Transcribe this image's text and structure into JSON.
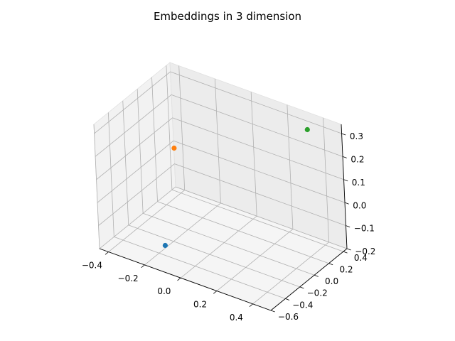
{
  "chart_data": {
    "type": "scatter",
    "projection": "3d",
    "title": "Embeddings in 3 dimension",
    "xlabel": "",
    "ylabel": "",
    "zlabel": "",
    "xlim": [
      -0.45,
      0.5
    ],
    "ylim": [
      -0.6,
      0.45
    ],
    "zlim": [
      -0.2,
      0.34
    ],
    "grid": true,
    "x_ticks": [
      "−0.4",
      "−0.2",
      "0.0",
      "0.2",
      "0.4"
    ],
    "y_ticks": [
      "−0.6",
      "−0.4",
      "−0.2",
      "0.0",
      "0.2",
      "0.4"
    ],
    "z_ticks": [
      "−0.2",
      "−0.1",
      "0.0",
      "0.1",
      "0.2",
      "0.3"
    ],
    "points": [
      {
        "x": -0.1,
        "y": -0.55,
        "z": -0.1,
        "color": "#1f77b4"
      },
      {
        "x": -0.3,
        "y": 0.1,
        "z": 0.1,
        "color": "#ff7f0e"
      },
      {
        "x": 0.35,
        "y": 0.35,
        "z": 0.3,
        "color": "#2ca02c"
      }
    ],
    "pane_colors": {
      "x": "#f2f2f2",
      "y": "#ececec",
      "z": "#f5f5f5"
    },
    "grid_color": "#b0b0b0",
    "axis_color": "#000000"
  }
}
